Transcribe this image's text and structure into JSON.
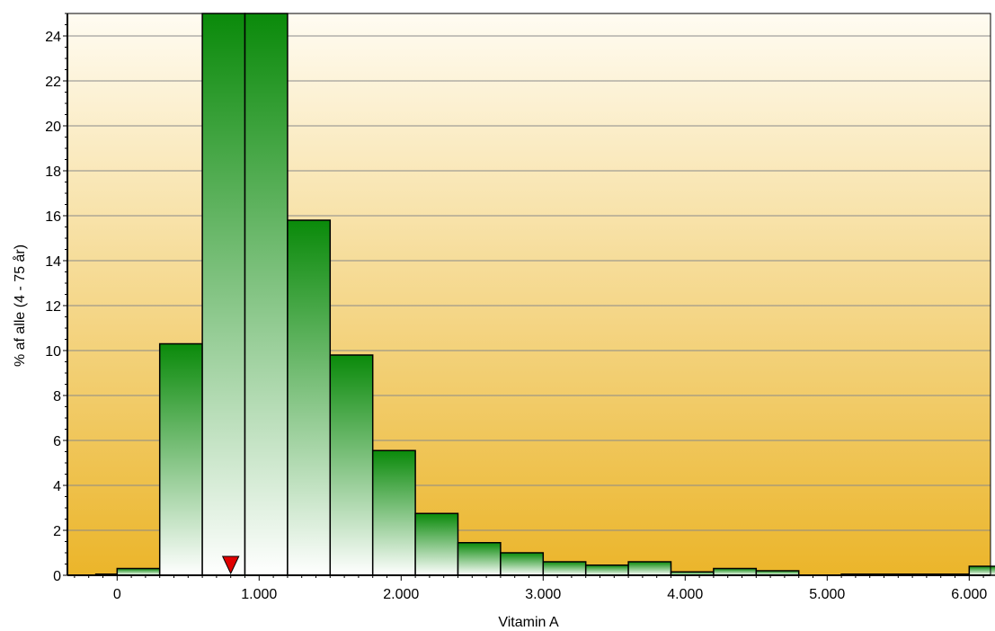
{
  "chart_data": {
    "type": "bar",
    "title": "",
    "xlabel": "Vitamin A",
    "ylabel": "% af alle (4 - 75 år)",
    "xlim": [
      -350,
      6150
    ],
    "ylim": [
      0,
      25
    ],
    "x_ticks": [
      0,
      1000,
      2000,
      3000,
      4000,
      5000,
      6000
    ],
    "x_tick_labels": [
      "0",
      "1.000",
      "2.000",
      "3.000",
      "4.000",
      "5.000",
      "6.000"
    ],
    "y_ticks": [
      0,
      2,
      4,
      6,
      8,
      10,
      12,
      14,
      16,
      18,
      20,
      22,
      24
    ],
    "y_tick_labels": [
      "0",
      "2",
      "4",
      "6",
      "8",
      "10",
      "12",
      "14",
      "16",
      "18",
      "20",
      "22",
      "24"
    ],
    "grid": "horizontal",
    "bin_width": 300,
    "bins": [
      {
        "start": -150,
        "value": 0.05
      },
      {
        "start": 0,
        "value": 0.3
      },
      {
        "start": 300,
        "value": 10.3
      },
      {
        "start": 600,
        "value": 25.0
      },
      {
        "start": 900,
        "value": 25.0
      },
      {
        "start": 1200,
        "value": 15.8
      },
      {
        "start": 1500,
        "value": 9.8
      },
      {
        "start": 1800,
        "value": 5.55
      },
      {
        "start": 2100,
        "value": 2.75
      },
      {
        "start": 2400,
        "value": 1.45
      },
      {
        "start": 2700,
        "value": 1.0
      },
      {
        "start": 3000,
        "value": 0.6
      },
      {
        "start": 3300,
        "value": 0.45
      },
      {
        "start": 3600,
        "value": 0.6
      },
      {
        "start": 3900,
        "value": 0.15
      },
      {
        "start": 4200,
        "value": 0.3
      },
      {
        "start": 4500,
        "value": 0.2
      },
      {
        "start": 5100,
        "value": 0.05
      },
      {
        "start": 5400,
        "value": 0.05
      },
      {
        "start": 5700,
        "value": 0.05
      },
      {
        "start": 6000,
        "value": 0.4
      }
    ],
    "marker": {
      "x": 800,
      "shape": "triangle-down",
      "color": "#e00000"
    },
    "colors": {
      "bar_top": "#0a8a0a",
      "bar_bottom": "#ffffff",
      "background_top": "#fffcf2",
      "background_bottom": "#ebb52a"
    }
  }
}
